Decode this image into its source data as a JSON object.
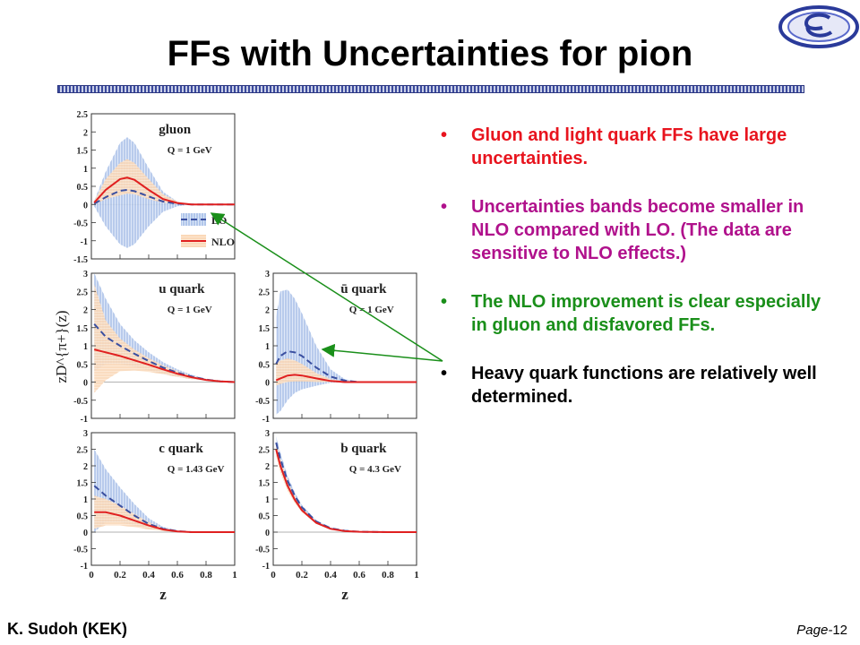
{
  "slide": {
    "title": "FFs with Uncertainties for pion",
    "author": "K. Sudoh (KEK)",
    "page_prefix": "Page-",
    "page_number": "12",
    "logo_icon": "kek-logo-icon"
  },
  "bullets": [
    {
      "text": "Gluon and light quark FFs have large uncertainties.",
      "color": "#e8141e"
    },
    {
      "text": "Uncertainties bands become smaller in NLO compared with LO. (The data are sensitive to NLO effects.)",
      "color": "#b0118c"
    },
    {
      "text": "The NLO improvement is clear especially in gluon and disfavored FFs.",
      "color": "#1a8f1a"
    },
    {
      "text": "Heavy quark functions are relatively well determined.",
      "color": "#000000"
    }
  ],
  "chart_data": {
    "type": "line",
    "ylabel": "zD^{π+}(z)",
    "xlabel": "z",
    "x_ticks": [
      "0",
      "0.2",
      "0.4",
      "0.6",
      "0.8",
      "1"
    ],
    "legend": [
      {
        "name": "LO",
        "style": "dashed",
        "color": "#3a4fa0"
      },
      {
        "name": "NLO",
        "style": "solid",
        "color": "#e02020"
      }
    ],
    "panels": [
      {
        "name": "gluon",
        "q_label": "Q = 1 GeV",
        "ylim": [
          -1.5,
          2.5
        ],
        "y_ticks": [
          "2.5",
          "2",
          "1.5",
          "1",
          "0.5",
          "0",
          "-0.5",
          "-1",
          "-1.5"
        ],
        "x": [
          0.02,
          0.1,
          0.2,
          0.25,
          0.3,
          0.4,
          0.5,
          0.6,
          0.7,
          0.8,
          1.0
        ],
        "lo": [
          0.02,
          0.2,
          0.38,
          0.4,
          0.37,
          0.22,
          0.08,
          0.02,
          0.0,
          0.0,
          0.0
        ],
        "lo_upper": [
          0.1,
          0.9,
          1.7,
          1.85,
          1.7,
          1.0,
          0.35,
          0.08,
          0.0,
          0.0,
          0.0
        ],
        "lo_lower": [
          -0.05,
          -0.6,
          -1.1,
          -1.2,
          -1.1,
          -0.6,
          -0.2,
          -0.05,
          0.0,
          0.0,
          0.0
        ],
        "nlo": [
          0.05,
          0.4,
          0.7,
          0.74,
          0.68,
          0.4,
          0.15,
          0.04,
          0.0,
          0.0,
          0.0
        ],
        "nlo_upper": [
          0.1,
          0.7,
          1.15,
          1.25,
          1.15,
          0.7,
          0.28,
          0.08,
          0.0,
          0.0,
          0.0
        ],
        "nlo_lower": [
          0.0,
          0.15,
          0.25,
          0.3,
          0.28,
          0.15,
          0.05,
          0.01,
          0.0,
          0.0,
          0.0
        ]
      },
      {
        "name": "u quark",
        "q_label": "Q = 1 GeV",
        "ylim": [
          -1,
          3
        ],
        "y_ticks": [
          "3",
          "2.5",
          "2",
          "1.5",
          "1",
          "0.5",
          "0",
          "-0.5",
          "-1"
        ],
        "x": [
          0.02,
          0.1,
          0.2,
          0.3,
          0.4,
          0.5,
          0.6,
          0.7,
          0.8,
          0.9,
          1.0
        ],
        "lo": [
          1.6,
          1.25,
          1.0,
          0.78,
          0.58,
          0.4,
          0.26,
          0.15,
          0.07,
          0.02,
          0.0
        ],
        "lo_upper": [
          3.0,
          2.3,
          1.6,
          1.15,
          0.82,
          0.55,
          0.35,
          0.2,
          0.09,
          0.03,
          0.0
        ],
        "lo_lower": [
          0.3,
          0.5,
          0.5,
          0.42,
          0.32,
          0.22,
          0.14,
          0.08,
          0.04,
          0.01,
          0.0
        ],
        "nlo": [
          0.9,
          0.82,
          0.72,
          0.6,
          0.48,
          0.35,
          0.23,
          0.13,
          0.06,
          0.02,
          0.0
        ],
        "nlo_upper": [
          2.7,
          1.7,
          1.2,
          0.9,
          0.66,
          0.46,
          0.3,
          0.17,
          0.08,
          0.02,
          0.0
        ],
        "nlo_lower": [
          -0.3,
          0.05,
          0.3,
          0.32,
          0.28,
          0.22,
          0.14,
          0.08,
          0.04,
          0.01,
          0.0
        ]
      },
      {
        "name": "ū quark",
        "q_label": "Q = 1 GeV",
        "ylim": [
          -1,
          3
        ],
        "y_ticks": [
          "3",
          "2.5",
          "2",
          "1.5",
          "1",
          "0.5",
          "0",
          "-0.5",
          "-1"
        ],
        "x": [
          0.02,
          0.05,
          0.1,
          0.15,
          0.2,
          0.3,
          0.4,
          0.5,
          0.6,
          0.8,
          1.0
        ],
        "lo": [
          0.5,
          0.72,
          0.85,
          0.82,
          0.72,
          0.4,
          0.15,
          0.04,
          0.0,
          0.0,
          0.0
        ],
        "lo_upper": [
          1.8,
          2.5,
          2.55,
          2.3,
          1.9,
          1.0,
          0.35,
          0.08,
          0.0,
          0.0,
          0.0
        ],
        "lo_lower": [
          -0.9,
          -0.8,
          -0.5,
          -0.3,
          -0.2,
          -0.1,
          -0.02,
          0.0,
          0.0,
          0.0,
          0.0
        ],
        "nlo": [
          0.05,
          0.1,
          0.18,
          0.2,
          0.18,
          0.1,
          0.03,
          0.0,
          0.0,
          0.0,
          0.0
        ],
        "nlo_upper": [
          0.5,
          0.6,
          0.65,
          0.6,
          0.5,
          0.25,
          0.08,
          0.02,
          0.0,
          0.0,
          0.0
        ],
        "nlo_lower": [
          -0.1,
          -0.05,
          0.0,
          0.02,
          0.02,
          0.0,
          0.0,
          0.0,
          0.0,
          0.0,
          0.0
        ]
      },
      {
        "name": "c quark",
        "q_label": "Q = 1.43 GeV",
        "ylim": [
          -1,
          3
        ],
        "y_ticks": [
          "3",
          "2.5",
          "2",
          "1.5",
          "1",
          "0.5",
          "0",
          "-0.5",
          "-1"
        ],
        "x": [
          0.02,
          0.1,
          0.2,
          0.3,
          0.4,
          0.5,
          0.6,
          0.7,
          0.8,
          1.0
        ],
        "lo": [
          1.4,
          1.1,
          0.8,
          0.5,
          0.25,
          0.1,
          0.03,
          0.0,
          0.0,
          0.0
        ],
        "lo_upper": [
          2.5,
          1.9,
          1.35,
          0.85,
          0.42,
          0.16,
          0.05,
          0.0,
          0.0,
          0.0
        ],
        "lo_lower": [
          0.0,
          0.3,
          0.3,
          0.2,
          0.1,
          0.04,
          0.01,
          0.0,
          0.0,
          0.0
        ],
        "nlo": [
          0.6,
          0.6,
          0.5,
          0.35,
          0.2,
          0.08,
          0.02,
          0.0,
          0.0,
          0.0
        ],
        "nlo_upper": [
          1.1,
          1.0,
          0.8,
          0.55,
          0.3,
          0.12,
          0.03,
          0.0,
          0.0,
          0.0
        ],
        "nlo_lower": [
          0.1,
          0.2,
          0.2,
          0.15,
          0.08,
          0.03,
          0.01,
          0.0,
          0.0,
          0.0
        ]
      },
      {
        "name": "b quark",
        "q_label": "Q = 4.3 GeV",
        "ylim": [
          -1,
          3
        ],
        "y_ticks": [
          "3",
          "2.5",
          "2",
          "1.5",
          "1",
          "0.5",
          "0",
          "-0.5",
          "-1"
        ],
        "x": [
          0.02,
          0.05,
          0.1,
          0.15,
          0.2,
          0.3,
          0.4,
          0.5,
          0.6,
          0.8,
          1.0
        ],
        "lo": [
          2.7,
          2.2,
          1.55,
          1.1,
          0.75,
          0.32,
          0.12,
          0.04,
          0.01,
          0.0,
          0.0
        ],
        "lo_upper": [
          2.9,
          2.4,
          1.7,
          1.2,
          0.82,
          0.36,
          0.14,
          0.05,
          0.01,
          0.0,
          0.0
        ],
        "lo_lower": [
          2.4,
          2.0,
          1.4,
          1.0,
          0.68,
          0.29,
          0.1,
          0.03,
          0.0,
          0.0,
          0.0
        ],
        "nlo": [
          2.5,
          2.0,
          1.4,
          0.98,
          0.66,
          0.28,
          0.1,
          0.03,
          0.01,
          0.0,
          0.0
        ],
        "nlo_upper": [
          2.7,
          2.2,
          1.55,
          1.08,
          0.73,
          0.31,
          0.12,
          0.04,
          0.01,
          0.0,
          0.0
        ],
        "nlo_lower": [
          2.3,
          1.8,
          1.25,
          0.88,
          0.6,
          0.25,
          0.09,
          0.02,
          0.0,
          0.0,
          0.0
        ]
      }
    ]
  }
}
